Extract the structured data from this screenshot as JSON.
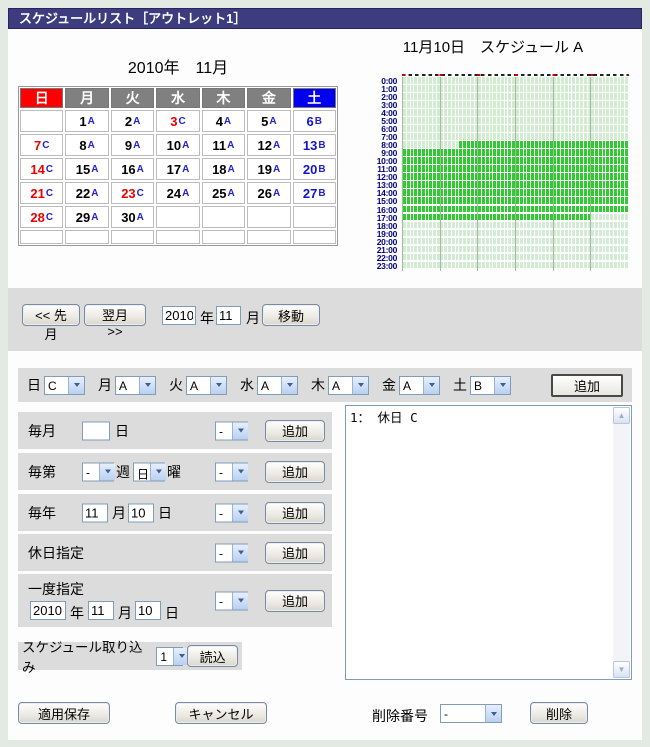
{
  "window": {
    "title": "スケジュールリスト［アウトレット1］"
  },
  "calendar": {
    "title": "2010年　11月",
    "day_headers": [
      {
        "label": "日",
        "bg": "#ff0000"
      },
      {
        "label": "月",
        "bg": "#808080"
      },
      {
        "label": "火",
        "bg": "#808080"
      },
      {
        "label": "水",
        "bg": "#808080"
      },
      {
        "label": "木",
        "bg": "#808080"
      },
      {
        "label": "金",
        "bg": "#808080"
      },
      {
        "label": "土",
        "bg": "#0000ee"
      }
    ],
    "weeks": [
      [
        {
          "n": "",
          "s": "",
          "c": "k"
        },
        {
          "n": "1",
          "s": "A",
          "c": "k"
        },
        {
          "n": "2",
          "s": "A",
          "c": "k"
        },
        {
          "n": "3",
          "s": "C",
          "c": "r"
        },
        {
          "n": "4",
          "s": "A",
          "c": "k"
        },
        {
          "n": "5",
          "s": "A",
          "c": "k"
        },
        {
          "n": "6",
          "s": "B",
          "c": "b"
        }
      ],
      [
        {
          "n": "7",
          "s": "C",
          "c": "r"
        },
        {
          "n": "8",
          "s": "A",
          "c": "k"
        },
        {
          "n": "9",
          "s": "A",
          "c": "k"
        },
        {
          "n": "10",
          "s": "A",
          "c": "k"
        },
        {
          "n": "11",
          "s": "A",
          "c": "k"
        },
        {
          "n": "12",
          "s": "A",
          "c": "k"
        },
        {
          "n": "13",
          "s": "B",
          "c": "b"
        }
      ],
      [
        {
          "n": "14",
          "s": "C",
          "c": "r"
        },
        {
          "n": "15",
          "s": "A",
          "c": "k"
        },
        {
          "n": "16",
          "s": "A",
          "c": "k"
        },
        {
          "n": "17",
          "s": "A",
          "c": "k"
        },
        {
          "n": "18",
          "s": "A",
          "c": "k"
        },
        {
          "n": "19",
          "s": "A",
          "c": "k"
        },
        {
          "n": "20",
          "s": "B",
          "c": "b"
        }
      ],
      [
        {
          "n": "21",
          "s": "C",
          "c": "r"
        },
        {
          "n": "22",
          "s": "A",
          "c": "k"
        },
        {
          "n": "23",
          "s": "C",
          "c": "r"
        },
        {
          "n": "24",
          "s": "A",
          "c": "k"
        },
        {
          "n": "25",
          "s": "A",
          "c": "k"
        },
        {
          "n": "26",
          "s": "A",
          "c": "k"
        },
        {
          "n": "27",
          "s": "B",
          "c": "b"
        }
      ],
      [
        {
          "n": "28",
          "s": "C",
          "c": "r"
        },
        {
          "n": "29",
          "s": "A",
          "c": "k"
        },
        {
          "n": "30",
          "s": "A",
          "c": "k"
        },
        {
          "n": "",
          "s": "",
          "c": "k"
        },
        {
          "n": "",
          "s": "",
          "c": "k"
        },
        {
          "n": "",
          "s": "",
          "c": "k"
        },
        {
          "n": "",
          "s": "",
          "c": "k"
        }
      ],
      [
        {
          "n": "",
          "s": "",
          "c": "k"
        },
        {
          "n": "",
          "s": "",
          "c": "k"
        },
        {
          "n": "",
          "s": "",
          "c": "k"
        },
        {
          "n": "",
          "s": "",
          "c": "k"
        },
        {
          "n": "",
          "s": "",
          "c": "k"
        },
        {
          "n": "",
          "s": "",
          "c": "k"
        },
        {
          "n": "",
          "s": "",
          "c": "k"
        }
      ]
    ],
    "colors": {
      "k": "#000000",
      "r": "#ee0000",
      "b": "#1414cc",
      "suffix": "#2222cc"
    }
  },
  "schedule_chart": {
    "title": "11月10日　スケジュール A",
    "hours": [
      "0:00",
      "1:00",
      "2:00",
      "3:00",
      "4:00",
      "5:00",
      "6:00",
      "7:00",
      "8:00",
      "9:00",
      "10:00",
      "11:00",
      "12:00",
      "13:00",
      "14:00",
      "15:00",
      "16:00",
      "17:00",
      "18:00",
      "19:00",
      "20:00",
      "21:00",
      "22:00",
      "23:00"
    ],
    "cols_per_hour_row": 60,
    "major_gridline_every": 10,
    "active_ranges": {
      "8:00": [
        15,
        60
      ],
      "9:00": [
        0,
        60
      ],
      "10:00": [
        0,
        60
      ],
      "11:00": [
        0,
        60
      ],
      "12:00": [
        0,
        60
      ],
      "13:00": [
        0,
        60
      ],
      "14:00": [
        0,
        60
      ],
      "15:00": [
        0,
        60
      ],
      "16:00": [
        0,
        60
      ],
      "17:00": [
        0,
        50
      ]
    },
    "colors": {
      "active": "#2ecc2e",
      "inactive": "#d2ecd2",
      "major_line": "#a9b6a9",
      "label": "#000080"
    }
  },
  "nav": {
    "prev_label": "<< 先月",
    "next_label": "翌月 >>",
    "year_value": "2010",
    "year_unit": "年",
    "month_value": "11",
    "month_unit": "月",
    "go_label": "移動"
  },
  "weekday_row": {
    "items": [
      {
        "label": "日",
        "value": "C"
      },
      {
        "label": "月",
        "value": "A"
      },
      {
        "label": "火",
        "value": "A"
      },
      {
        "label": "水",
        "value": "A"
      },
      {
        "label": "木",
        "value": "A"
      },
      {
        "label": "金",
        "value": "A"
      },
      {
        "label": "土",
        "value": "B"
      }
    ],
    "add_label": "追加"
  },
  "rows": {
    "monthly": {
      "label": "毎月",
      "day_value": "",
      "day_unit": "日",
      "schedule_value": "-",
      "add_label": "追加"
    },
    "nth_weekday": {
      "label": "毎第",
      "nth_value": "-",
      "week_unit": "週",
      "dow_value": "日",
      "dow_unit": "曜",
      "schedule_value": "-",
      "add_label": "追加"
    },
    "yearly": {
      "label": "毎年",
      "month_value": "11",
      "month_unit": "月",
      "day_value": "10",
      "day_unit": "日",
      "schedule_value": "-",
      "add_label": "追加"
    },
    "holiday": {
      "label": "休日指定",
      "schedule_value": "-",
      "add_label": "追加"
    },
    "once": {
      "label": "一度指定",
      "year_value": "2010",
      "year_unit": "年",
      "month_value": "11",
      "month_unit": "月",
      "day_value": "10",
      "day_unit": "日",
      "schedule_value": "-",
      "add_label": "追加"
    },
    "import": {
      "label": "スケジュール取り込み",
      "value": "1",
      "load_label": "読込"
    }
  },
  "list": {
    "items": [
      "1： 休日 C"
    ]
  },
  "footer": {
    "save_label": "適用保存",
    "cancel_label": "キャンセル",
    "delete_number_label": "削除番号",
    "delete_value": "-",
    "delete_button_label": "削除"
  }
}
